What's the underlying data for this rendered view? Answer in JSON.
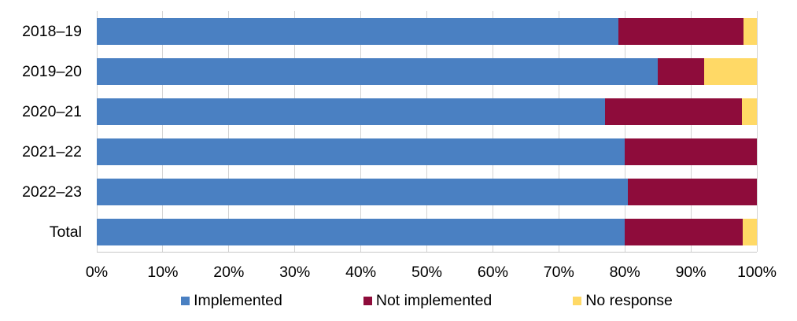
{
  "chart_data": {
    "type": "bar",
    "orientation": "horizontal",
    "stacked": true,
    "title": "",
    "xlabel": "",
    "ylabel": "",
    "categories": [
      "2018–19",
      "2019–20",
      "2020–21",
      "2021–22",
      "2022–23",
      "Total"
    ],
    "series": [
      {
        "name": "Implemented",
        "color": "#4a80c2",
        "values": [
          79,
          85,
          77,
          80,
          80.5,
          80
        ]
      },
      {
        "name": "Not implemented",
        "color": "#8e0c3b",
        "values": [
          19,
          7,
          20.7,
          20,
          19.5,
          17.8
        ]
      },
      {
        "name": "No response",
        "color": "#ffd966",
        "values": [
          2,
          8,
          2.3,
          0,
          0,
          2.2
        ]
      }
    ],
    "x_axis": {
      "min": 0,
      "max": 100,
      "unit": "%",
      "tick_step": 10,
      "tick_labels": [
        "0%",
        "10%",
        "20%",
        "30%",
        "40%",
        "50%",
        "60%",
        "70%",
        "80%",
        "90%",
        "100%"
      ]
    },
    "grid": "vertical",
    "legend_position": "bottom"
  },
  "colors": {
    "background": "#ffffff",
    "gridline": "#d3d3d3",
    "axis_line": "#c9c9c9",
    "text": "#000000"
  }
}
